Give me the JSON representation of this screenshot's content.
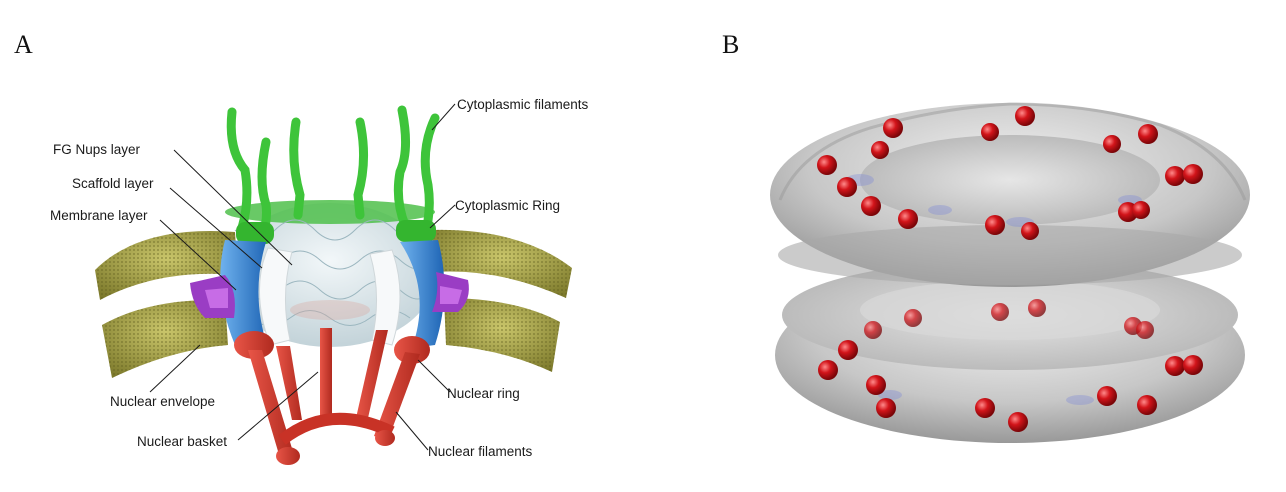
{
  "panels": {
    "a": {
      "letter": "A",
      "labels": {
        "cytoplasmic_filaments": "Cytoplasmic filaments",
        "fg_nups_layer": "FG Nups layer",
        "scaffold_layer": "Scaffold layer",
        "membrane_layer": "Membrane layer",
        "cytoplasmic_ring": "Cytoplasmic Ring",
        "nuclear_envelope": "Nuclear envelope",
        "nuclear_ring": "Nuclear ring",
        "nuclear_basket": "Nuclear basket",
        "nuclear_filaments": "Nuclear filaments"
      }
    },
    "b": {
      "letter": "B"
    }
  },
  "colors": {
    "filament_green": "#3ec43a",
    "basket_red": "#d9382b",
    "scaffold_blue": "#2f7fd0",
    "membrane_purple": "#9a3dc4",
    "envelope_olive": "#a6a348",
    "sphere_red": "#d2141a",
    "surface_grey": "#bdbdbd"
  }
}
